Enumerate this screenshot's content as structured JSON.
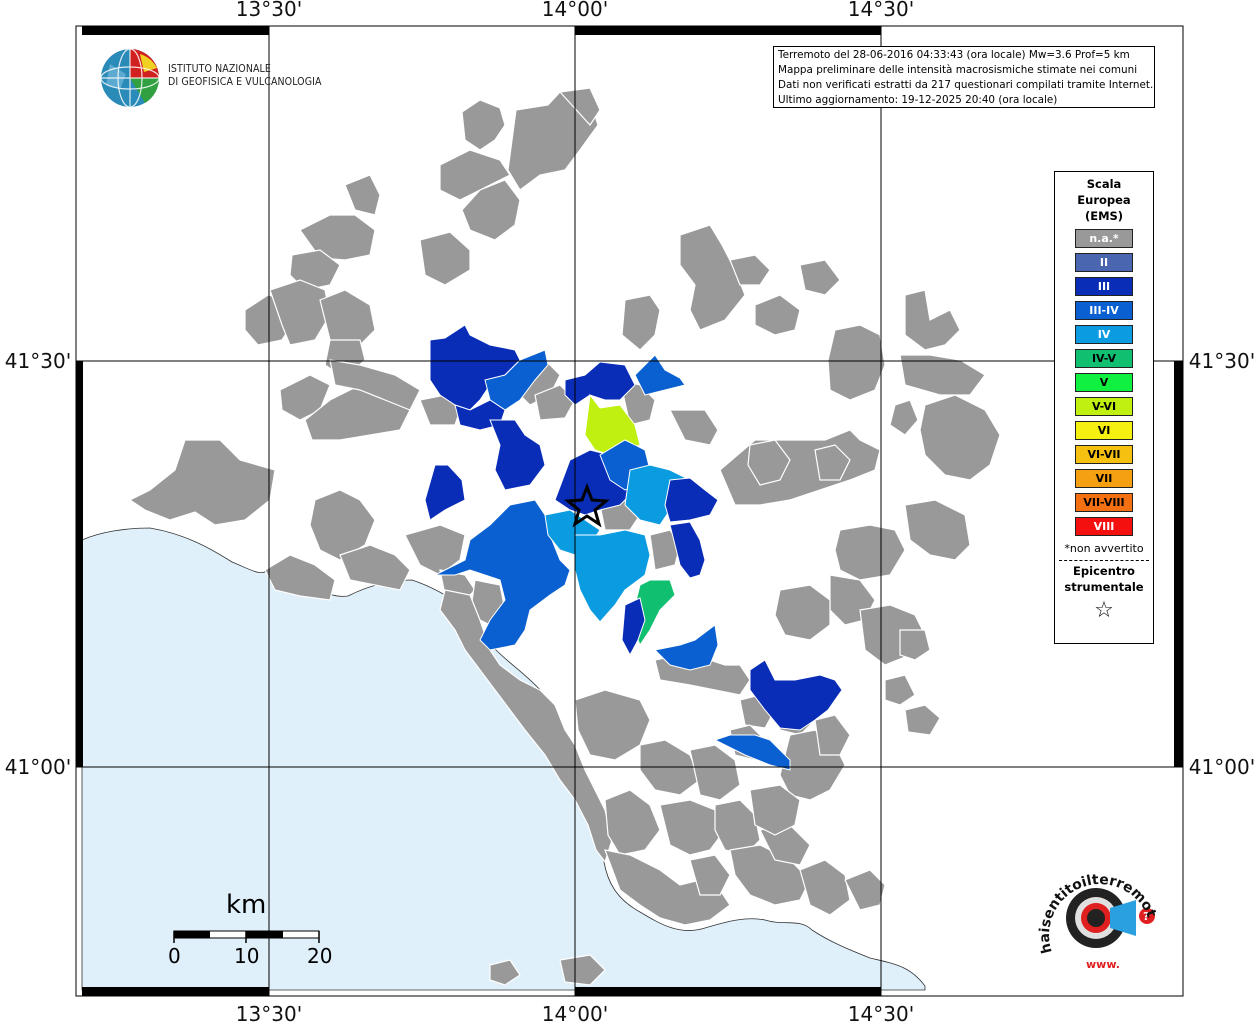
{
  "axes": {
    "top_labels": [
      "13°30'",
      "14°00'",
      "14°30'"
    ],
    "bottom_labels": [
      "13°30'",
      "14°00'",
      "14°30'"
    ],
    "left_labels": [
      "41°30'",
      "41°00'"
    ],
    "right_labels": [
      "41°30'",
      "41°00'"
    ]
  },
  "info": {
    "line1": "Terremoto del 28-06-2016 04:33:43 (ora locale) Mw=3.6 Prof=5 km",
    "line2": "Mappa preliminare delle intensità macrosismiche stimate nei comuni",
    "line3": "Dati non verificati estratti da 217 questionari compilati tramite Internet.",
    "line4": "Ultimo aggiornamento: 19-12-2025 20:40 (ora locale)"
  },
  "institution": {
    "line1": "ISTITUTO NAZIONALE",
    "line2": "DI GEOFISICA E VULCANOLOGIA"
  },
  "legend": {
    "title_lines": [
      "Scala",
      "Europea",
      "(EMS)"
    ],
    "items": [
      {
        "label": "n.a.*",
        "color": "#999999",
        "text_color": "#ffffff"
      },
      {
        "label": "II",
        "color": "#4a66b0",
        "text_color": "#ffffff"
      },
      {
        "label": "III",
        "color": "#0a2db8",
        "text_color": "#ffffff"
      },
      {
        "label": "III-IV",
        "color": "#0a60d0",
        "text_color": "#ffffff"
      },
      {
        "label": "IV",
        "color": "#0a9be0",
        "text_color": "#ffffff"
      },
      {
        "label": "IV-V",
        "color": "#10c070",
        "text_color": "#000000"
      },
      {
        "label": "V",
        "color": "#10f040",
        "text_color": "#000000"
      },
      {
        "label": "V-VI",
        "color": "#c0f010",
        "text_color": "#000000"
      },
      {
        "label": "VI",
        "color": "#f5f010",
        "text_color": "#000000"
      },
      {
        "label": "VI-VII",
        "color": "#f5c010",
        "text_color": "#000000"
      },
      {
        "label": "VII",
        "color": "#f5a010",
        "text_color": "#000000"
      },
      {
        "label": "VII-VIII",
        "color": "#f57010",
        "text_color": "#000000"
      },
      {
        "label": "VIII",
        "color": "#f51010",
        "text_color": "#ffffff"
      }
    ],
    "note": "*non avvertito",
    "epicenter_lines": [
      "Epicentro",
      "strumentale"
    ],
    "epicenter_symbol": "☆"
  },
  "scale_bar": {
    "unit": "km",
    "labels": [
      "0",
      "10",
      "20"
    ]
  },
  "colors": {
    "sea": "#dff0fb",
    "na": "#999999",
    "ii": "#4a66b0",
    "iii": "#0a2db8",
    "iii_iv": "#0a60d0",
    "iv": "#0a9be0",
    "iv_v": "#10c070",
    "v_vi": "#c0f010"
  },
  "watermark": {
    "text": "haisentitoilterremoto.it",
    "prefix": "www."
  }
}
